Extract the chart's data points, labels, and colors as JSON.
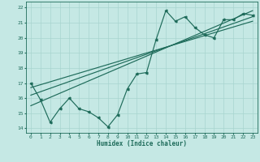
{
  "xlabel": "Humidex (Indice chaleur)",
  "xlim": [
    -0.5,
    23.5
  ],
  "ylim": [
    13.7,
    22.4
  ],
  "yticks": [
    14,
    15,
    16,
    17,
    18,
    19,
    20,
    21,
    22
  ],
  "xticks": [
    0,
    1,
    2,
    3,
    4,
    5,
    6,
    7,
    8,
    9,
    10,
    11,
    12,
    13,
    14,
    15,
    16,
    17,
    18,
    19,
    20,
    21,
    22,
    23
  ],
  "bg_color": "#c5e8e4",
  "grid_color": "#a8d4cf",
  "line_color": "#1e6b5a",
  "series_x": [
    0,
    1,
    2,
    3,
    4,
    5,
    6,
    7,
    8,
    9,
    10,
    11,
    12,
    13,
    14,
    15,
    16,
    17,
    18,
    19,
    20,
    21,
    22,
    23
  ],
  "series_y": [
    17.0,
    15.9,
    14.4,
    15.3,
    16.0,
    15.3,
    15.1,
    14.7,
    14.1,
    14.9,
    16.6,
    17.6,
    17.7,
    19.9,
    21.8,
    21.1,
    21.4,
    20.7,
    20.2,
    20.0,
    21.2,
    21.2,
    21.6,
    21.5
  ],
  "reg_lines": [
    {
      "x": [
        0,
        23
      ],
      "y": [
        16.2,
        21.4
      ]
    },
    {
      "x": [
        0,
        23
      ],
      "y": [
        15.5,
        21.8
      ]
    },
    {
      "x": [
        0,
        23
      ],
      "y": [
        16.7,
        21.1
      ]
    }
  ],
  "marker_size": 2.0,
  "linewidth": 0.85
}
